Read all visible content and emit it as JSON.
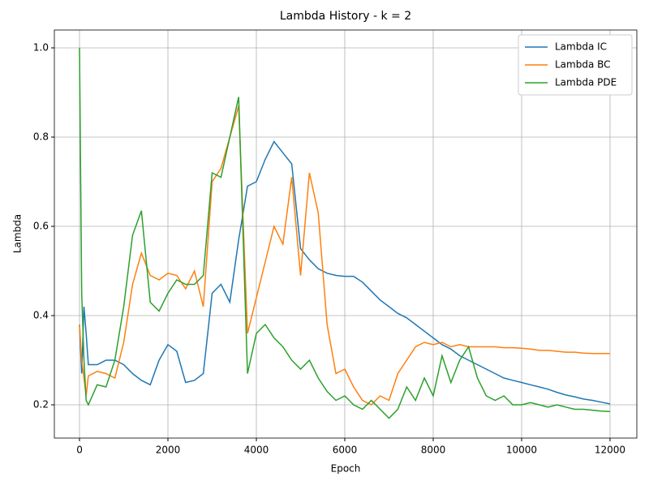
{
  "chart_data": {
    "type": "line",
    "title": "Lambda History - k = 2",
    "x_label": "Epoch",
    "y_label": "Lambda",
    "x": [
      0,
      50,
      100,
      150,
      200,
      400,
      600,
      800,
      1000,
      1200,
      1400,
      1600,
      1800,
      2000,
      2200,
      2400,
      2600,
      2800,
      3000,
      3200,
      3400,
      3600,
      3800,
      4000,
      4200,
      4400,
      4600,
      4800,
      5000,
      5200,
      5400,
      5600,
      5800,
      6000,
      6200,
      6400,
      6600,
      6800,
      7000,
      7200,
      7400,
      7600,
      7800,
      8000,
      8200,
      8400,
      8600,
      8800,
      9000,
      9200,
      9400,
      9600,
      9800,
      10000,
      10200,
      10400,
      10600,
      10800,
      11000,
      11200,
      11400,
      11600,
      11800,
      12000
    ],
    "series": [
      {
        "name": "Lambda IC",
        "color": "#1f77b4",
        "values": [
          0.38,
          0.27,
          0.42,
          0.36,
          0.29,
          0.29,
          0.3,
          0.3,
          0.29,
          0.27,
          0.255,
          0.245,
          0.3,
          0.335,
          0.32,
          0.25,
          0.255,
          0.27,
          0.45,
          0.47,
          0.43,
          0.57,
          0.69,
          0.7,
          0.75,
          0.79,
          0.765,
          0.74,
          0.55,
          0.525,
          0.505,
          0.495,
          0.49,
          0.488,
          0.488,
          0.475,
          0.455,
          0.435,
          0.42,
          0.405,
          0.395,
          0.38,
          0.365,
          0.35,
          0.335,
          0.325,
          0.31,
          0.3,
          0.29,
          0.28,
          0.27,
          0.26,
          0.255,
          0.25,
          0.245,
          0.24,
          0.235,
          0.228,
          0.222,
          0.218,
          0.213,
          0.21,
          0.206,
          0.202
        ]
      },
      {
        "name": "Lambda BC",
        "color": "#ff7f0e",
        "values": [
          0.38,
          0.3,
          0.26,
          0.22,
          0.265,
          0.275,
          0.27,
          0.26,
          0.34,
          0.47,
          0.54,
          0.49,
          0.48,
          0.495,
          0.49,
          0.46,
          0.5,
          0.42,
          0.7,
          0.73,
          0.8,
          0.87,
          0.36,
          0.44,
          0.52,
          0.6,
          0.56,
          0.71,
          0.49,
          0.72,
          0.63,
          0.38,
          0.27,
          0.28,
          0.24,
          0.21,
          0.2,
          0.22,
          0.21,
          0.27,
          0.3,
          0.33,
          0.34,
          0.335,
          0.34,
          0.33,
          0.335,
          0.33,
          0.33,
          0.33,
          0.33,
          0.328,
          0.328,
          0.327,
          0.325,
          0.322,
          0.322,
          0.32,
          0.318,
          0.318,
          0.316,
          0.315,
          0.315,
          0.315
        ]
      },
      {
        "name": "Lambda PDE",
        "color": "#2ca02c",
        "values": [
          1.0,
          0.45,
          0.3,
          0.21,
          0.2,
          0.245,
          0.24,
          0.3,
          0.42,
          0.58,
          0.635,
          0.43,
          0.41,
          0.45,
          0.48,
          0.47,
          0.47,
          0.49,
          0.72,
          0.71,
          0.8,
          0.89,
          0.27,
          0.36,
          0.38,
          0.35,
          0.33,
          0.3,
          0.28,
          0.3,
          0.26,
          0.23,
          0.21,
          0.22,
          0.2,
          0.19,
          0.21,
          0.19,
          0.17,
          0.19,
          0.24,
          0.21,
          0.26,
          0.22,
          0.31,
          0.25,
          0.3,
          0.33,
          0.26,
          0.22,
          0.21,
          0.22,
          0.2,
          0.2,
          0.205,
          0.2,
          0.195,
          0.2,
          0.195,
          0.19,
          0.19,
          0.188,
          0.186,
          0.185
        ]
      }
    ],
    "xlim": [
      -569,
      12606
    ],
    "ylim": [
      0.1255,
      1.04
    ],
    "xticks": [
      0,
      2000,
      4000,
      6000,
      8000,
      10000,
      12000
    ],
    "yticks": [
      0.2,
      0.4,
      0.6,
      0.8,
      {
        "value": 1.0,
        "label": "1.0"
      }
    ],
    "grid": true,
    "legend": "upper right"
  }
}
